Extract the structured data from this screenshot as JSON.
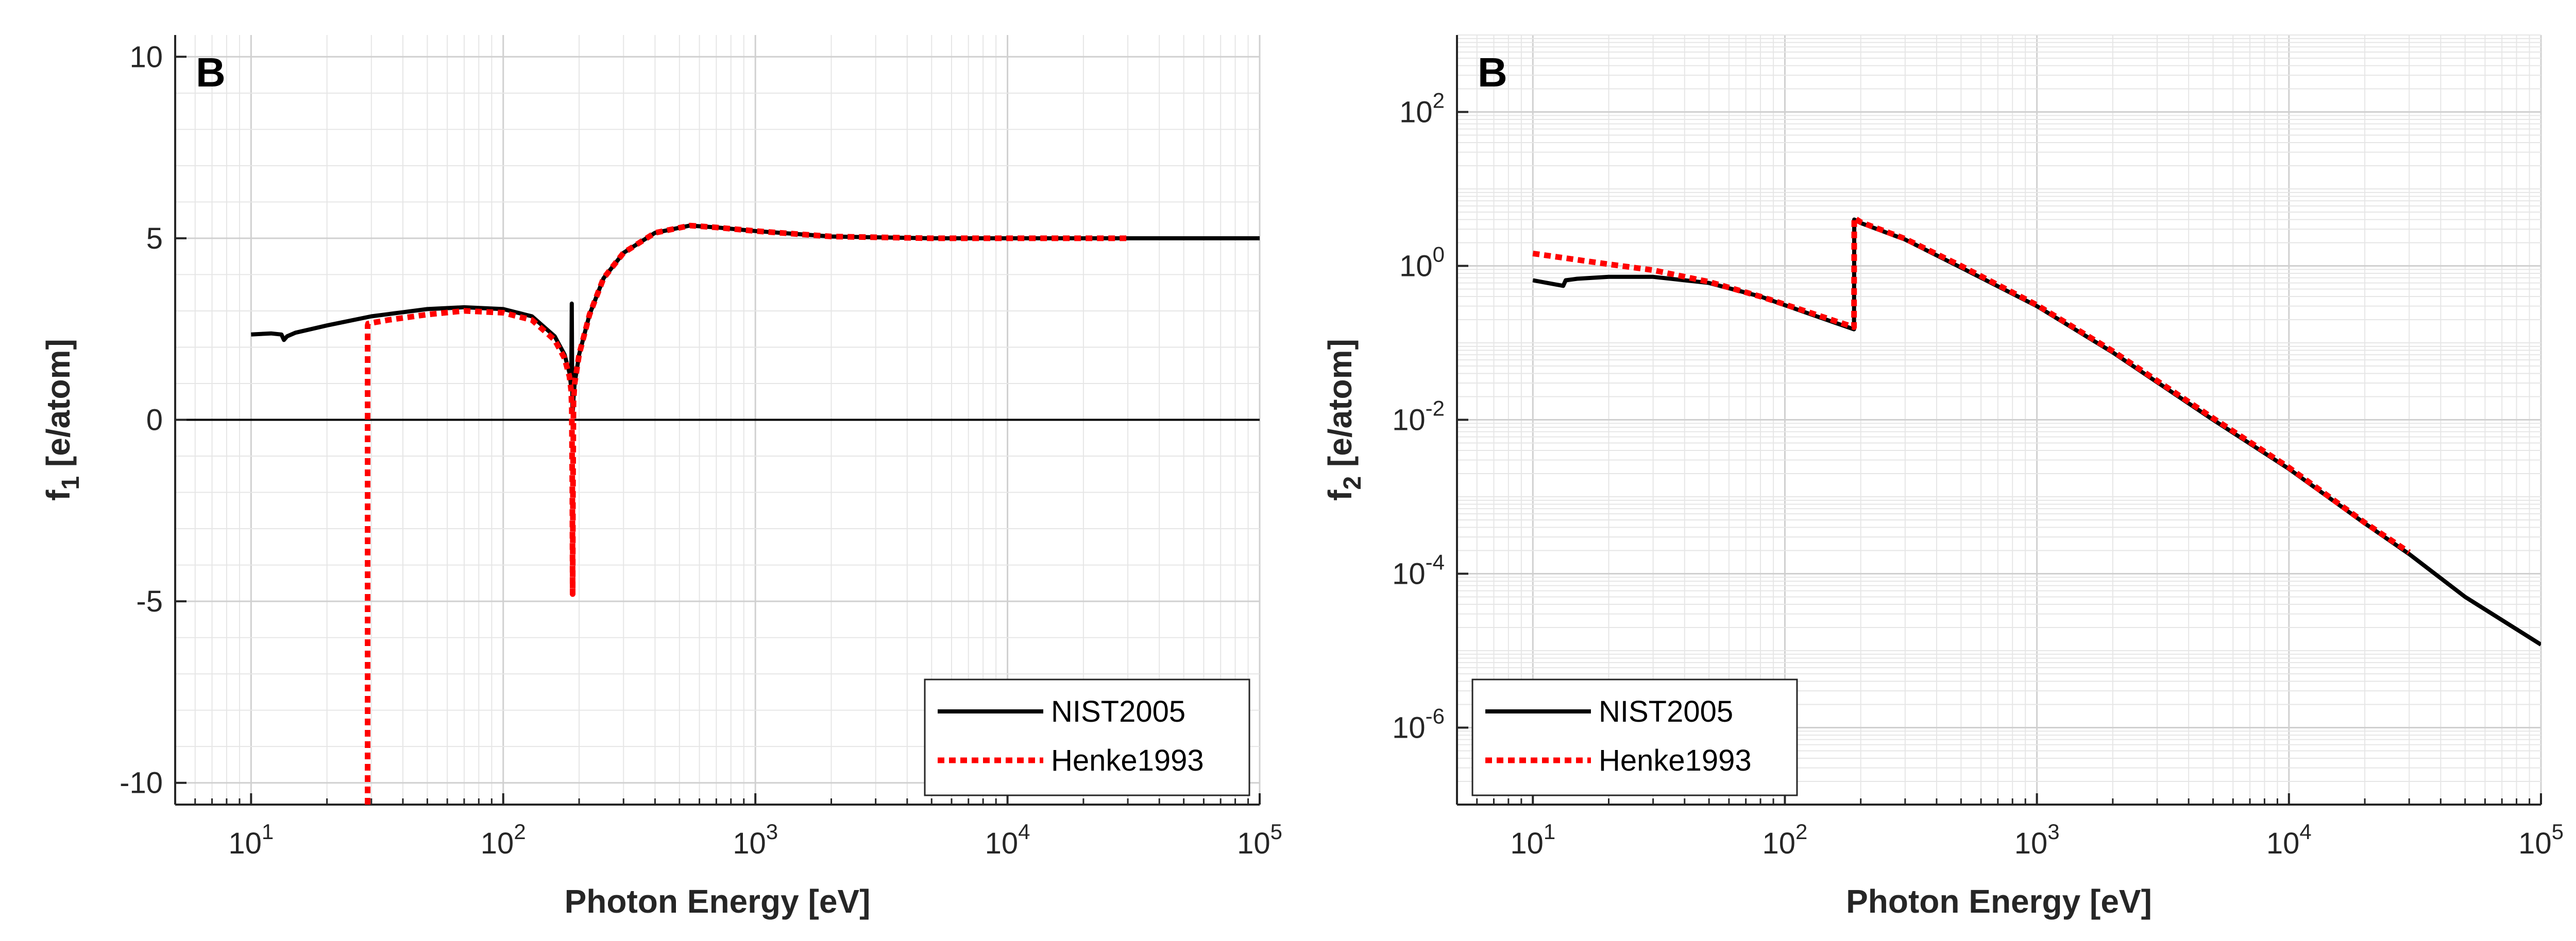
{
  "chart_data": [
    {
      "type": "line",
      "panel_label": "B",
      "xlabel": "Photon Energy [eV]",
      "ylabel": "f",
      "ylabel_sub": "1",
      "ylabel_unit": "[e/atom]",
      "xscale": "log",
      "yscale": "linear",
      "xlim": [
        5,
        100000
      ],
      "ylim": [
        -10.6,
        10.6
      ],
      "xticks": [
        10,
        100,
        1000,
        10000,
        100000
      ],
      "xtick_labels": [
        {
          "base": "10",
          "exp": "1"
        },
        {
          "base": "10",
          "exp": "2"
        },
        {
          "base": "10",
          "exp": "3"
        },
        {
          "base": "10",
          "exp": "4"
        },
        {
          "base": "10",
          "exp": "5"
        }
      ],
      "yticks": [
        10,
        5,
        0,
        -5,
        -10
      ],
      "ytick_labels": [
        "10",
        "5",
        "0",
        "-5",
        "-10"
      ],
      "zero_line": true,
      "grid": "major and minor",
      "legend_position": "bottom-right",
      "colors": {
        "NIST2005": "#000000",
        "Henke1993": "#ff0000"
      },
      "series": [
        {
          "name": "NIST2005",
          "style": "solid",
          "x": [
            10,
            12,
            13.2,
            13.5,
            13.9,
            15,
            20,
            30,
            50,
            70,
            100,
            130,
            160,
            175,
            183,
            186,
            187,
            188,
            188.5,
            189,
            190,
            192,
            195,
            200,
            220,
            250,
            300,
            400,
            550,
            700,
            1000,
            2000,
            5000,
            10000,
            30000,
            100000
          ],
          "y": [
            2.35,
            2.38,
            2.35,
            2.2,
            2.3,
            2.4,
            2.6,
            2.85,
            3.05,
            3.1,
            3.05,
            2.85,
            2.3,
            1.8,
            1.3,
            0.9,
            3.2,
            0.35,
            0.2,
            0.3,
            0.6,
            1.0,
            1.3,
            1.8,
            2.9,
            3.9,
            4.6,
            5.15,
            5.35,
            5.3,
            5.2,
            5.05,
            5.0,
            5.0,
            5.0,
            5.0
          ]
        },
        {
          "name": "Henke1993",
          "style": "dotted",
          "x": [
            29,
            29,
            29.1,
            35,
            50,
            70,
            100,
            130,
            160,
            175,
            183,
            186,
            187,
            188,
            188.5,
            189,
            190,
            192,
            195,
            200,
            220,
            250,
            300,
            400,
            550,
            700,
            1000,
            2000,
            5000,
            10000,
            30000
          ],
          "y": [
            -10.6,
            2.6,
            2.65,
            2.75,
            2.9,
            3.0,
            2.95,
            2.75,
            2.2,
            1.7,
            1.2,
            0.8,
            0.3,
            -2.0,
            -4.8,
            -2.0,
            0.5,
            1.0,
            1.3,
            1.8,
            2.9,
            3.9,
            4.6,
            5.15,
            5.35,
            5.3,
            5.2,
            5.05,
            5.0,
            5.0,
            5.0
          ]
        }
      ]
    },
    {
      "type": "line",
      "panel_label": "B",
      "xlabel": "Photon Energy [eV]",
      "ylabel": "f",
      "ylabel_sub": "2",
      "ylabel_unit": "[e/atom]",
      "xscale": "log",
      "yscale": "log",
      "xlim": [
        5,
        100000
      ],
      "ylim": [
        1e-07,
        1000
      ],
      "xticks": [
        10,
        100,
        1000,
        10000,
        100000
      ],
      "xtick_labels": [
        {
          "base": "10",
          "exp": "1"
        },
        {
          "base": "10",
          "exp": "2"
        },
        {
          "base": "10",
          "exp": "3"
        },
        {
          "base": "10",
          "exp": "4"
        },
        {
          "base": "10",
          "exp": "5"
        }
      ],
      "yticks": [
        100,
        1,
        0.01,
        0.0001,
        1e-06
      ],
      "ytick_labels": [
        {
          "base": "10",
          "exp": "2"
        },
        {
          "base": "10",
          "exp": "0"
        },
        {
          "base": "10",
          "exp": "-2"
        },
        {
          "base": "10",
          "exp": "-4"
        },
        {
          "base": "10",
          "exp": "-6"
        }
      ],
      "grid": "major and minor",
      "legend_position": "bottom-left",
      "colors": {
        "NIST2005": "#000000",
        "Henke1993": "#ff0000"
      },
      "series": [
        {
          "name": "NIST2005",
          "style": "solid",
          "x": [
            10,
            13.2,
            13.5,
            15,
            20,
            30,
            50,
            80,
            120,
            160,
            188,
            188.5,
            200,
            300,
            500,
            1000,
            2000,
            5000,
            10000,
            20000,
            30000,
            50000,
            100000
          ],
          "y": [
            0.65,
            0.55,
            0.65,
            0.68,
            0.72,
            0.72,
            0.6,
            0.4,
            0.25,
            0.18,
            0.15,
            4.0,
            3.6,
            2.2,
            0.95,
            0.3,
            0.075,
            0.01,
            0.0023,
            0.00045,
            0.00018,
            5e-05,
            1.2e-05
          ]
        },
        {
          "name": "Henke1993",
          "style": "dotted",
          "x": [
            10,
            15,
            20,
            30,
            50,
            80,
            120,
            160,
            188,
            188.5,
            200,
            300,
            500,
            1000,
            2000,
            5000,
            10000,
            20000,
            30000
          ],
          "y": [
            1.45,
            1.2,
            1.05,
            0.88,
            0.62,
            0.4,
            0.26,
            0.19,
            0.16,
            4.2,
            3.7,
            2.25,
            1.0,
            0.31,
            0.078,
            0.0105,
            0.0024,
            0.00046,
            0.00019
          ]
        }
      ]
    }
  ]
}
